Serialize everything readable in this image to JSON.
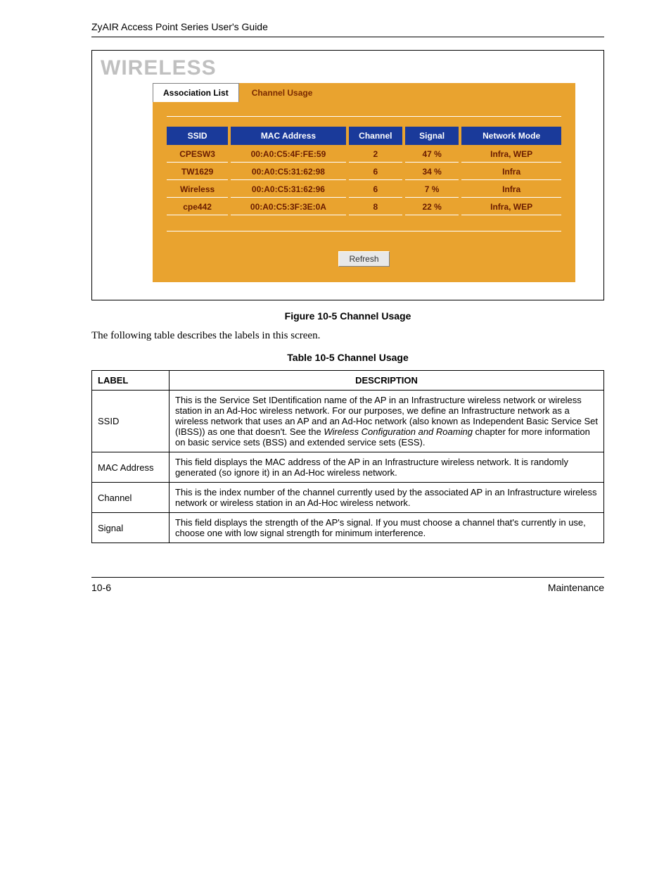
{
  "header": "ZyAIR Access Point Series User's Guide",
  "wireless_heading": "WIRELESS",
  "tabs": {
    "inactive": "Association List",
    "active": "Channel Usage"
  },
  "usage_columns": {
    "ssid": "SSID",
    "mac": "MAC Address",
    "channel": "Channel",
    "signal": "Signal",
    "mode": "Network Mode"
  },
  "usage_rows": [
    {
      "ssid": "CPESW3",
      "mac": "00:A0:C5:4F:FE:59",
      "channel": "2",
      "signal": "47 %",
      "mode": "Infra, WEP"
    },
    {
      "ssid": "TW1629",
      "mac": "00:A0:C5:31:62:98",
      "channel": "6",
      "signal": "34 %",
      "mode": "Infra"
    },
    {
      "ssid": "Wireless",
      "mac": "00:A0:C5:31:62:96",
      "channel": "6",
      "signal": "7 %",
      "mode": "Infra"
    },
    {
      "ssid": "cpe442",
      "mac": "00:A0:C5:3F:3E:0A",
      "channel": "8",
      "signal": "22 %",
      "mode": "Infra, WEP"
    }
  ],
  "refresh_label": "Refresh",
  "figure_caption": "Figure 10-5 Channel Usage",
  "intro_text": "The following table describes the labels in this screen.",
  "table_caption": "Table 10-5 Channel Usage",
  "desc_columns": {
    "label": "LABEL",
    "desc": "DESCRIPTION"
  },
  "desc_rows": [
    {
      "label": "SSID",
      "desc_pre": "This is the Service Set IDentification name of the AP in an Infrastructure wireless network or wireless station in an Ad-Hoc wireless network. For our purposes, we define an Infrastructure network as a wireless network that uses an AP and an Ad-Hoc network (also known as Independent Basic Service Set (IBSS)) as one that doesn't. See the ",
      "desc_italic": "Wireless Configuration and Roaming",
      "desc_post": " chapter for more information on basic service sets (BSS) and extended service sets (ESS)."
    },
    {
      "label": "MAC Address",
      "desc_pre": "This field displays the MAC address of the AP in an Infrastructure wireless network. It is randomly generated (so ignore it) in an Ad-Hoc wireless network.",
      "desc_italic": "",
      "desc_post": ""
    },
    {
      "label": "Channel",
      "desc_pre": "This is the index number of the channel currently used by the associated AP in an Infrastructure wireless network or wireless station in an Ad-Hoc wireless network.",
      "desc_italic": "",
      "desc_post": ""
    },
    {
      "label": "Signal",
      "desc_pre": "This field displays the strength of the AP's signal. If you must choose a channel that's currently in use, choose one with low signal strength for minimum interference.",
      "desc_italic": "",
      "desc_post": ""
    }
  ],
  "footer": {
    "left": "10-6",
    "right": "Maintenance"
  },
  "colors": {
    "orange": "#e9a32f",
    "header_blue": "#1a3a9a",
    "row_text": "#6a1c00",
    "heading_grey": "#c0c0c0"
  }
}
